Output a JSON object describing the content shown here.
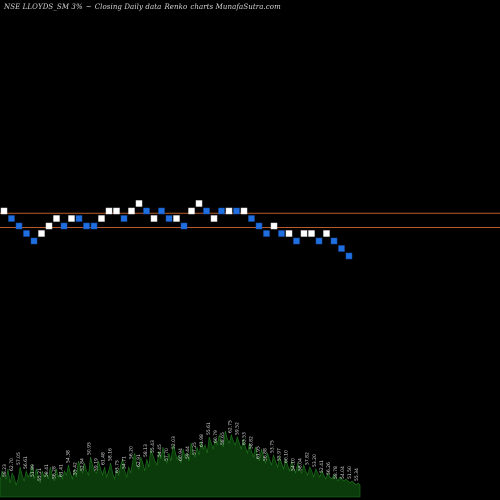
{
  "header": {
    "symbol": "NSE LLOYDS_SM 3%",
    "marker": "~",
    "chart_desc": "Closing Daily data",
    "chart_kind": "Renko",
    "site": "charts MunafaSutra.com"
  },
  "colors": {
    "background": "#000000",
    "up_brick": "#ffffff",
    "down_brick": "#1f6fe0",
    "reference_line": "#b85a2a",
    "volume_fill": "#0b3a0b",
    "volume_label": "#d8d8d8"
  },
  "chart_data": {
    "type": "renko",
    "brick_size_percent": 3,
    "bricks": [
      {
        "level": 0,
        "dir": "up"
      },
      {
        "level": -1,
        "dir": "down"
      },
      {
        "level": -2,
        "dir": "down"
      },
      {
        "level": -3,
        "dir": "down"
      },
      {
        "level": -4,
        "dir": "down"
      },
      {
        "level": -3,
        "dir": "up"
      },
      {
        "level": -2,
        "dir": "up"
      },
      {
        "level": -1,
        "dir": "up"
      },
      {
        "level": -2,
        "dir": "down"
      },
      {
        "level": -1,
        "dir": "up"
      },
      {
        "level": -1,
        "dir": "down"
      },
      {
        "level": -2,
        "dir": "down"
      },
      {
        "level": -2,
        "dir": "down"
      },
      {
        "level": -1,
        "dir": "up"
      },
      {
        "level": 0,
        "dir": "up"
      },
      {
        "level": 0,
        "dir": "up"
      },
      {
        "level": -1,
        "dir": "down"
      },
      {
        "level": 0,
        "dir": "up"
      },
      {
        "level": 1,
        "dir": "up"
      },
      {
        "level": 0,
        "dir": "down"
      },
      {
        "level": -1,
        "dir": "up"
      },
      {
        "level": 0,
        "dir": "down"
      },
      {
        "level": -1,
        "dir": "down"
      },
      {
        "level": -1,
        "dir": "up"
      },
      {
        "level": -2,
        "dir": "down"
      },
      {
        "level": 0,
        "dir": "up"
      },
      {
        "level": 1,
        "dir": "up"
      },
      {
        "level": 0,
        "dir": "down"
      },
      {
        "level": -1,
        "dir": "up"
      },
      {
        "level": 0,
        "dir": "down"
      },
      {
        "level": 0,
        "dir": "up"
      },
      {
        "level": 0,
        "dir": "down"
      },
      {
        "level": 0,
        "dir": "up"
      },
      {
        "level": -1,
        "dir": "down"
      },
      {
        "level": -2,
        "dir": "down"
      },
      {
        "level": -3,
        "dir": "down"
      },
      {
        "level": -2,
        "dir": "up"
      },
      {
        "level": -3,
        "dir": "down"
      },
      {
        "level": -3,
        "dir": "up"
      },
      {
        "level": -4,
        "dir": "down"
      },
      {
        "level": -3,
        "dir": "up"
      },
      {
        "level": -3,
        "dir": "up"
      },
      {
        "level": -4,
        "dir": "down"
      },
      {
        "level": -3,
        "dir": "up"
      },
      {
        "level": -4,
        "dir": "down"
      },
      {
        "level": -5,
        "dir": "down"
      },
      {
        "level": -6,
        "dir": "down"
      }
    ],
    "reference_levels": [
      -0.3,
      -2.2
    ],
    "volume": {
      "values": [
        8,
        13,
        11,
        9,
        14,
        7,
        12,
        10,
        6,
        9,
        15,
        11,
        8,
        13,
        10,
        12,
        16,
        9,
        14,
        11,
        7,
        13,
        10,
        12,
        9,
        15,
        11,
        8,
        14,
        10,
        12,
        9,
        13,
        11,
        16,
        12,
        9,
        14,
        10,
        18,
        15,
        12,
        17,
        13,
        11,
        20,
        16,
        13,
        12,
        18,
        14,
        11,
        15,
        10,
        13,
        17,
        12,
        9,
        14,
        11,
        16,
        19,
        13,
        10,
        15,
        12,
        18,
        22,
        16,
        14,
        20,
        17,
        13,
        19,
        15,
        24,
        21,
        18,
        16,
        23,
        19,
        25,
        20,
        17,
        22,
        18,
        26,
        23,
        19,
        21,
        17,
        24,
        20,
        22,
        18,
        27,
        23,
        20,
        25,
        21,
        28,
        24,
        26,
        22,
        30,
        27,
        24,
        29,
        26,
        31,
        28,
        25,
        33,
        29,
        27,
        31,
        28,
        26,
        30,
        27,
        24,
        29,
        25,
        22,
        27,
        23,
        20,
        25,
        21,
        18,
        24,
        20,
        17,
        22,
        19,
        16,
        21,
        18,
        15,
        20,
        17,
        14,
        19,
        16,
        13,
        18,
        15,
        12,
        17,
        14,
        12,
        16,
        13,
        11,
        15,
        13,
        10,
        14,
        12,
        10,
        13,
        11,
        9,
        12,
        10,
        9,
        11,
        10,
        8,
        10,
        9,
        8,
        9,
        8,
        7,
        8,
        7,
        6,
        7,
        6
      ],
      "labels": [
        "58.23",
        "62.70",
        "57.05",
        "56.61",
        "51.89",
        "55.21",
        "58.41",
        "56.28",
        "61.41",
        "54.38",
        "55.42",
        "52.84",
        "50.95",
        "59.19",
        "61.48",
        "58.16",
        "63.75",
        "54.71",
        "56.20",
        "62.91",
        "58.13",
        "55.43",
        "54.45",
        "57.70",
        "52.03",
        "60.94",
        "59.44",
        "57.25",
        "61.98",
        "55.61",
        "60.79",
        "58.65",
        "62.75",
        "59.52",
        "63.53",
        "58.82",
        "61.95",
        "56.88",
        "53.75",
        "55.97",
        "60.10",
        "54.10",
        "58.04",
        "57.82",
        "53.20",
        "52.41",
        "56.26",
        "58.78",
        "54.04",
        "51.50",
        "55.34"
      ]
    }
  }
}
